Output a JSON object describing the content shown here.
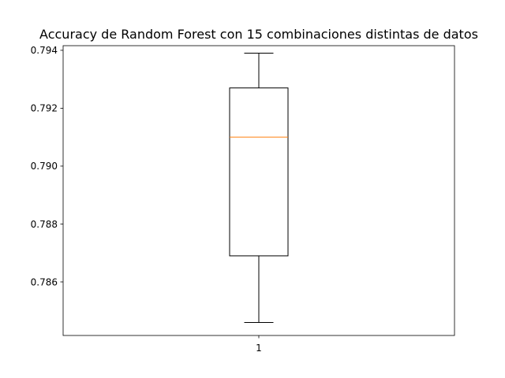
{
  "chart_data": {
    "type": "box",
    "title": "Accuracy de Random Forest con 15 combinaciones distintas de datos",
    "xlabel": "",
    "ylabel": "",
    "categories": [
      "1"
    ],
    "ylim": [
      0.78415,
      0.79416
    ],
    "yticks": [
      {
        "value": 0.786,
        "label": "0.786"
      },
      {
        "value": 0.788,
        "label": "0.788"
      },
      {
        "value": 0.79,
        "label": "0.790"
      },
      {
        "value": 0.792,
        "label": "0.792"
      },
      {
        "value": 0.794,
        "label": "0.794"
      }
    ],
    "boxes": [
      {
        "category": "1",
        "whisker_low": 0.7846,
        "q1": 0.7869,
        "median": 0.791,
        "q3": 0.7927,
        "whisker_high": 0.7939
      }
    ],
    "grid": false,
    "legend": "none",
    "colors": {
      "box": "#000000",
      "median": "#ff7f0e"
    }
  }
}
